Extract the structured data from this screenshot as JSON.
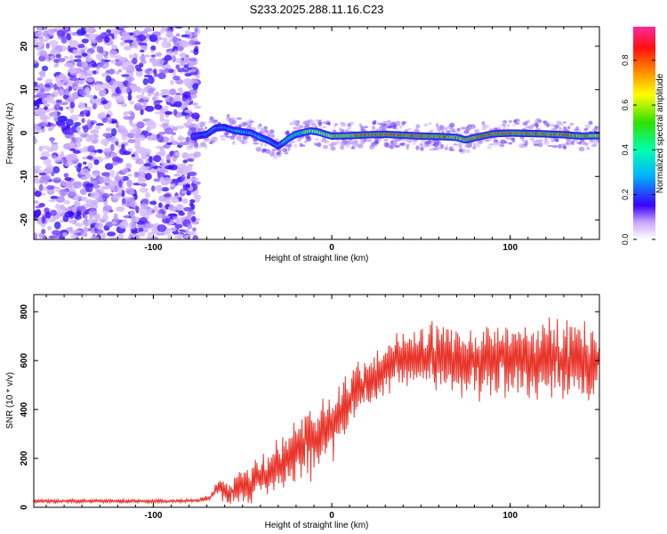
{
  "title": "S233.2025.288.11.16.C23",
  "chart_data": [
    {
      "type": "heatmap",
      "name": "spectrogram",
      "xlabel": "Height of straight line (km)",
      "ylabel": "Frequency (Hz)",
      "xlim": [
        -167,
        150
      ],
      "ylim": [
        -24.5,
        24.5
      ],
      "xticks": [
        -100,
        0,
        100
      ],
      "xtick_labels": [
        "-100",
        "0",
        "100"
      ],
      "yticks": [
        -20,
        -10,
        0,
        10,
        20
      ],
      "ytick_labels": [
        "-20",
        "-10",
        "0",
        "10",
        "20"
      ],
      "noise_region_x": [
        -167,
        -75
      ],
      "ridge": {
        "x": [
          -78,
          -70,
          -65,
          -60,
          -55,
          -50,
          -45,
          -40,
          -35,
          -30,
          -27,
          -24,
          -20,
          -15,
          -12,
          -8,
          -5,
          0,
          10,
          20,
          30,
          40,
          50,
          60,
          70,
          75,
          80,
          90,
          100,
          110,
          120,
          130,
          140,
          148
        ],
        "freq": [
          -0.8,
          -0.3,
          1.2,
          1.3,
          0.6,
          0.3,
          0.0,
          -1.0,
          -1.8,
          -3.0,
          -2.2,
          -1.2,
          -0.3,
          0.2,
          0.5,
          0.3,
          -0.1,
          -0.7,
          -0.6,
          -0.4,
          -0.3,
          -0.5,
          -0.7,
          -0.8,
          -1.0,
          -1.6,
          -1.1,
          -0.2,
          0.0,
          -0.1,
          -0.2,
          -0.4,
          -0.7,
          -0.6
        ],
        "amp": [
          0.22,
          0.32,
          0.35,
          0.3,
          0.38,
          0.4,
          0.38,
          0.42,
          0.35,
          0.3,
          0.4,
          0.5,
          0.55,
          0.65,
          0.72,
          0.68,
          0.7,
          0.78,
          0.85,
          0.92,
          0.95,
          0.9,
          0.93,
          0.88,
          0.86,
          0.8,
          0.88,
          0.9,
          0.93,
          0.9,
          0.92,
          0.88,
          0.85,
          0.8
        ]
      }
    },
    {
      "type": "colorbar",
      "name": "colorbar",
      "label": "Normalized spectral amplitude",
      "range": [
        0.0,
        0.95
      ],
      "ticks": [
        0.0,
        0.2,
        0.4,
        0.6,
        0.8
      ],
      "tick_labels": [
        "0.0",
        "0.2",
        "0.4",
        "0.6",
        "0.8"
      ]
    },
    {
      "type": "line",
      "name": "snr",
      "xlabel": "Height of straight line (km)",
      "ylabel": "SNR (10 * v/v)",
      "xlim": [
        -167,
        150
      ],
      "ylim": [
        0,
        870
      ],
      "xticks": [
        -100,
        0,
        100
      ],
      "xtick_labels": [
        "-100",
        "0",
        "100"
      ],
      "yticks": [
        0,
        200,
        400,
        600,
        800
      ],
      "ytick_labels": [
        "0",
        "200",
        "400",
        "600",
        "800"
      ],
      "color": "#e8352b",
      "series": [
        {
          "name": "SNR",
          "x": [
            -167,
            -140,
            -110,
            -90,
            -75,
            -68,
            -64,
            -60,
            -55,
            -50,
            -45,
            -40,
            -35,
            -30,
            -25,
            -20,
            -15,
            -10,
            -5,
            0,
            5,
            10,
            15,
            20,
            30,
            40,
            50,
            60,
            70,
            80,
            90,
            100,
            110,
            120,
            130,
            140,
            150
          ],
          "mean": [
            25,
            25,
            25,
            25,
            28,
            40,
            80,
            60,
            70,
            110,
            100,
            120,
            130,
            170,
            200,
            240,
            280,
            260,
            300,
            340,
            380,
            450,
            480,
            520,
            560,
            610,
            600,
            620,
            610,
            600,
            600,
            620,
            600,
            610,
            600,
            610,
            590
          ],
          "amp": [
            6,
            6,
            6,
            6,
            6,
            10,
            25,
            40,
            50,
            60,
            70,
            80,
            80,
            90,
            100,
            110,
            110,
            120,
            120,
            120,
            100,
            90,
            90,
            90,
            90,
            90,
            100,
            110,
            120,
            120,
            120,
            120,
            130,
            130,
            130,
            130,
            130
          ]
        }
      ]
    }
  ]
}
